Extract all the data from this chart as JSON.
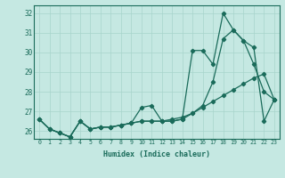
{
  "xlabel": "Humidex (Indice chaleur)",
  "ylabel": "",
  "bg_color": "#c5e8e2",
  "grid_color": "#a8d4cc",
  "line_color": "#1a6b5a",
  "x_values": [
    0,
    1,
    2,
    3,
    4,
    5,
    6,
    7,
    8,
    9,
    10,
    11,
    12,
    13,
    14,
    15,
    16,
    17,
    18,
    19,
    20,
    21,
    22,
    23
  ],
  "series1": [
    26.6,
    26.1,
    25.9,
    25.7,
    26.5,
    26.1,
    26.2,
    26.2,
    26.3,
    26.4,
    27.2,
    27.3,
    26.5,
    26.5,
    26.6,
    30.1,
    30.1,
    29.4,
    32.0,
    31.15,
    30.6,
    30.25,
    26.5,
    27.6
  ],
  "series2": [
    26.6,
    26.1,
    25.9,
    25.7,
    26.5,
    26.1,
    26.2,
    26.2,
    26.3,
    26.4,
    26.5,
    26.5,
    26.5,
    26.5,
    26.6,
    26.9,
    27.3,
    28.5,
    30.7,
    31.15,
    30.6,
    29.4,
    28.0,
    27.6
  ],
  "series3": [
    26.6,
    26.1,
    25.9,
    25.7,
    26.5,
    26.1,
    26.2,
    26.2,
    26.3,
    26.4,
    26.5,
    26.5,
    26.5,
    26.6,
    26.7,
    26.9,
    27.2,
    27.5,
    27.8,
    28.1,
    28.4,
    28.7,
    28.9,
    27.6
  ],
  "ylim": [
    25.6,
    32.4
  ],
  "yticks": [
    26,
    27,
    28,
    29,
    30,
    31,
    32
  ],
  "xticks": [
    0,
    1,
    2,
    3,
    4,
    5,
    6,
    7,
    8,
    9,
    10,
    11,
    12,
    13,
    14,
    15,
    16,
    17,
    18,
    19,
    20,
    21,
    22,
    23
  ]
}
